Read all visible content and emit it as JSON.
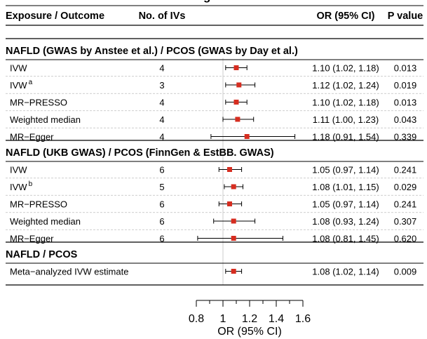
{
  "chart_data": {
    "type": "forest",
    "title_partial": "g",
    "columns": {
      "exposure": "Exposure / Outcome",
      "n_ivs": "No. of IVs",
      "or_ci": "OR (95% CI)",
      "p": "P value"
    },
    "x_axis": {
      "label": "OR (95% CI)",
      "ticks": [
        "0.8",
        "1",
        "1.2",
        "1.4",
        "1.6"
      ],
      "range": [
        0.8,
        1.6
      ],
      "reference_line": 1.0
    },
    "groups": [
      {
        "title": "NAFLD (GWAS by Anstee et al.) / PCOS (GWAS by Day et al.)",
        "rows": [
          {
            "method": "IVW",
            "sup": "",
            "n": "4",
            "or": 1.1,
            "lo": 1.02,
            "hi": 1.18,
            "or_text": "1.10 (1.02, 1.18)",
            "p": "0.013"
          },
          {
            "method": "IVW",
            "sup": "a",
            "n": "3",
            "or": 1.12,
            "lo": 1.02,
            "hi": 1.24,
            "or_text": "1.12 (1.02, 1.24)",
            "p": "0.019"
          },
          {
            "method": "MR−PRESSO",
            "sup": "",
            "n": "4",
            "or": 1.1,
            "lo": 1.02,
            "hi": 1.18,
            "or_text": "1.10 (1.02, 1.18)",
            "p": "0.013"
          },
          {
            "method": "Weighted median",
            "sup": "",
            "n": "4",
            "or": 1.11,
            "lo": 1.0,
            "hi": 1.23,
            "or_text": "1.11 (1.00, 1.23)",
            "p": "0.043"
          },
          {
            "method": "MR−Egger",
            "sup": "",
            "n": "4",
            "or": 1.18,
            "lo": 0.91,
            "hi": 1.54,
            "or_text": "1.18 (0.91, 1.54)",
            "p": "0.339"
          }
        ]
      },
      {
        "title": "NAFLD (UKB GWAS) / PCOS (FinnGen & EstBB. GWAS)",
        "rows": [
          {
            "method": "IVW",
            "sup": "",
            "n": "6",
            "or": 1.05,
            "lo": 0.97,
            "hi": 1.14,
            "or_text": "1.05 (0.97, 1.14)",
            "p": "0.241"
          },
          {
            "method": "IVW",
            "sup": "b",
            "n": "5",
            "or": 1.08,
            "lo": 1.01,
            "hi": 1.15,
            "or_text": "1.08 (1.01, 1.15)",
            "p": "0.029"
          },
          {
            "method": "MR−PRESSO",
            "sup": "",
            "n": "6",
            "or": 1.05,
            "lo": 0.97,
            "hi": 1.14,
            "or_text": "1.05 (0.97, 1.14)",
            "p": "0.241"
          },
          {
            "method": "Weighted median",
            "sup": "",
            "n": "6",
            "or": 1.08,
            "lo": 0.93,
            "hi": 1.24,
            "or_text": "1.08 (0.93, 1.24)",
            "p": "0.307"
          },
          {
            "method": "MR−Egger",
            "sup": "",
            "n": "6",
            "or": 1.08,
            "lo": 0.81,
            "hi": 1.45,
            "or_text": "1.08 (0.81, 1.45)",
            "p": "0.620"
          }
        ]
      },
      {
        "title": "NAFLD / PCOS",
        "rows": [
          {
            "method": "Meta−analyzed IVW estimate",
            "sup": "",
            "n": "",
            "or": 1.08,
            "lo": 1.02,
            "hi": 1.14,
            "or_text": "1.08 (1.02, 1.14)",
            "p": "0.009"
          }
        ]
      }
    ],
    "colors": {
      "point": "#d62d20",
      "lines": "#000000",
      "row_divider": "#bdbdbd",
      "reference_line": "#cccccc"
    }
  }
}
